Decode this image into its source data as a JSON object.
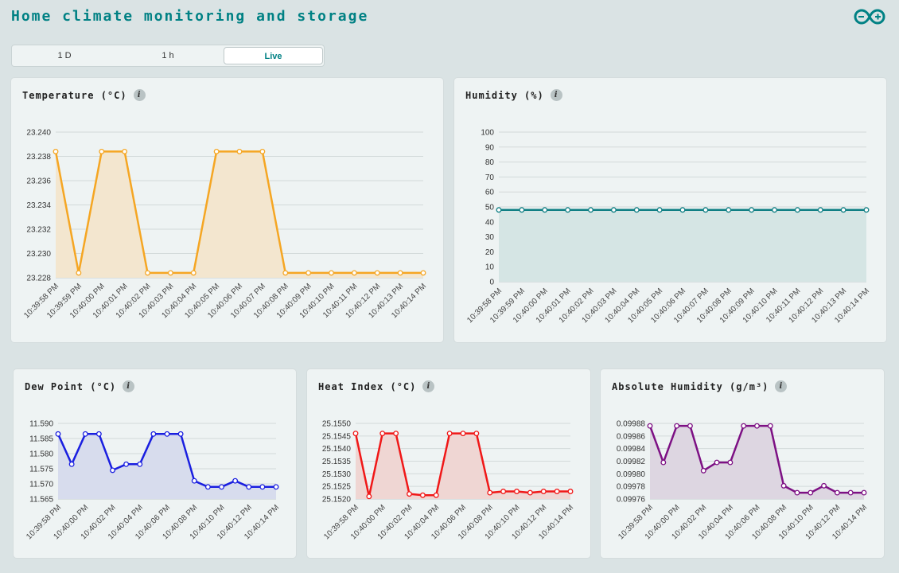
{
  "header": {
    "title": "Home climate monitoring and storage",
    "logo_icon": "arduino-logo-icon"
  },
  "tabs": [
    {
      "label": "1 D",
      "active": false
    },
    {
      "label": "1 h",
      "active": false
    },
    {
      "label": "Live",
      "active": true
    }
  ],
  "cards": {
    "temperature": {
      "title": "Temperature (°C)"
    },
    "humidity": {
      "title": "Humidity (%)"
    },
    "dew_point": {
      "title": "Dew Point (°C)"
    },
    "heat_index": {
      "title": "Heat Index (°C)"
    },
    "absolute_humidity": {
      "title": "Absolute Humidity (g/m³)"
    }
  },
  "chart_data": [
    {
      "id": "temperature",
      "type": "area",
      "title": "Temperature (°C)",
      "color": "#f5a623",
      "fill": "#f3e6cf",
      "categories": [
        "10:39:58 PM",
        "10:39:59 PM",
        "10:40:00 PM",
        "10:40:01 PM",
        "10:40:02 PM",
        "10:40:03 PM",
        "10:40:04 PM",
        "10:40:05 PM",
        "10:40:06 PM",
        "10:40:07 PM",
        "10:40:08 PM",
        "10:40:09 PM",
        "10:40:10 PM",
        "10:40:11 PM",
        "10:40:12 PM",
        "10:40:13 PM",
        "10:40:14 PM"
      ],
      "values": [
        23.2384,
        23.2284,
        23.2384,
        23.2384,
        23.2284,
        23.2284,
        23.2284,
        23.2384,
        23.2384,
        23.2384,
        23.2284,
        23.2284,
        23.2284,
        23.2284,
        23.2284,
        23.2284,
        23.2284
      ],
      "yticks": [
        "23.228",
        "23.230",
        "23.232",
        "23.234",
        "23.236",
        "23.238",
        "23.240"
      ],
      "ylim": [
        23.228,
        23.24
      ],
      "grid": true
    },
    {
      "id": "humidity",
      "type": "area",
      "title": "Humidity (%)",
      "color": "#0f7f84",
      "fill": "#d5e5e4",
      "categories": [
        "10:39:58 PM",
        "10:39:59 PM",
        "10:40:00 PM",
        "10:40:01 PM",
        "10:40:02 PM",
        "10:40:03 PM",
        "10:40:04 PM",
        "10:40:05 PM",
        "10:40:06 PM",
        "10:40:07 PM",
        "10:40:08 PM",
        "10:40:09 PM",
        "10:40:10 PM",
        "10:40:11 PM",
        "10:40:12 PM",
        "10:40:13 PM",
        "10:40:14 PM"
      ],
      "values": [
        48,
        48,
        48,
        48,
        48,
        48,
        48,
        48,
        48,
        48,
        48,
        48,
        48,
        48,
        48,
        48,
        48
      ],
      "yticks": [
        "0",
        "10",
        "20",
        "30",
        "40",
        "50",
        "60",
        "70",
        "80",
        "90",
        "100"
      ],
      "ylim": [
        0,
        100
      ],
      "grid": true
    },
    {
      "id": "dew_point",
      "type": "area",
      "title": "Dew Point (°C)",
      "color": "#1a1fe0",
      "fill": "#d7dced",
      "categories": [
        "10:39:58 PM",
        "10:39:59 PM",
        "10:40:00 PM",
        "10:40:01 PM",
        "10:40:02 PM",
        "10:40:03 PM",
        "10:40:04 PM",
        "10:40:05 PM",
        "10:40:06 PM",
        "10:40:07 PM",
        "10:40:08 PM",
        "10:40:09 PM",
        "10:40:10 PM",
        "10:40:11 PM",
        "10:40:12 PM",
        "10:40:13 PM",
        "10:40:14 PM"
      ],
      "xticks": [
        "10:39:58 PM",
        "10:40:00 PM",
        "10:40:02 PM",
        "10:40:04 PM",
        "10:40:06 PM",
        "10:40:08 PM",
        "10:40:10 PM",
        "10:40:12 PM",
        "10:40:14 PM"
      ],
      "values": [
        11.5865,
        11.5765,
        11.5865,
        11.5865,
        11.5745,
        11.5765,
        11.5765,
        11.5865,
        11.5865,
        11.5865,
        11.571,
        11.569,
        11.569,
        11.571,
        11.569,
        11.569,
        11.569
      ],
      "yticks": [
        "11.565",
        "11.570",
        "11.575",
        "11.580",
        "11.585",
        "11.590"
      ],
      "ylim": [
        11.565,
        11.59
      ],
      "grid": true
    },
    {
      "id": "heat_index",
      "type": "area",
      "title": "Heat Index (°C)",
      "color": "#f01818",
      "fill": "#efd6d3",
      "categories": [
        "10:39:58 PM",
        "10:39:59 PM",
        "10:40:00 PM",
        "10:40:01 PM",
        "10:40:02 PM",
        "10:40:03 PM",
        "10:40:04 PM",
        "10:40:05 PM",
        "10:40:06 PM",
        "10:40:07 PM",
        "10:40:08 PM",
        "10:40:09 PM",
        "10:40:10 PM",
        "10:40:11 PM",
        "10:40:12 PM",
        "10:40:13 PM",
        "10:40:14 PM"
      ],
      "xticks": [
        "10:39:58 PM",
        "10:40:00 PM",
        "10:40:02 PM",
        "10:40:04 PM",
        "10:40:06 PM",
        "10:40:08 PM",
        "10:40:10 PM",
        "10:40:12 PM",
        "10:40:14 PM"
      ],
      "values": [
        25.1546,
        25.1521,
        25.1546,
        25.1546,
        25.1522,
        25.15215,
        25.15215,
        25.1546,
        25.1546,
        25.1546,
        25.15225,
        25.1523,
        25.1523,
        25.15225,
        25.1523,
        25.1523,
        25.1523
      ],
      "yticks": [
        "25.1520",
        "25.1525",
        "25.1530",
        "25.1535",
        "25.1540",
        "25.1545",
        "25.1550"
      ],
      "ylim": [
        25.152,
        25.155
      ],
      "grid": true
    },
    {
      "id": "absolute_humidity",
      "type": "area",
      "title": "Absolute Humidity (g/m³)",
      "color": "#7d1184",
      "fill": "#ddd6e1",
      "categories": [
        "10:39:58 PM",
        "10:39:59 PM",
        "10:40:00 PM",
        "10:40:01 PM",
        "10:40:02 PM",
        "10:40:03 PM",
        "10:40:04 PM",
        "10:40:05 PM",
        "10:40:06 PM",
        "10:40:07 PM",
        "10:40:08 PM",
        "10:40:09 PM",
        "10:40:10 PM",
        "10:40:11 PM",
        "10:40:12 PM",
        "10:40:13 PM",
        "10:40:14 PM"
      ],
      "xticks": [
        "10:39:58 PM",
        "10:40:00 PM",
        "10:40:02 PM",
        "10:40:04 PM",
        "10:40:06 PM",
        "10:40:08 PM",
        "10:40:10 PM",
        "10:40:12 PM",
        "10:40:14 PM"
      ],
      "values": [
        0.099876,
        0.099818,
        0.099876,
        0.099876,
        0.099805,
        0.099818,
        0.099818,
        0.099876,
        0.099876,
        0.099876,
        0.099781,
        0.09977,
        0.09977,
        0.099781,
        0.09977,
        0.09977,
        0.09977
      ],
      "yticks": [
        "0.09976",
        "0.09978",
        "0.09980",
        "0.09982",
        "0.09984",
        "0.09986",
        "0.09988"
      ],
      "ylim": [
        0.09976,
        0.09988
      ],
      "grid": true
    }
  ]
}
